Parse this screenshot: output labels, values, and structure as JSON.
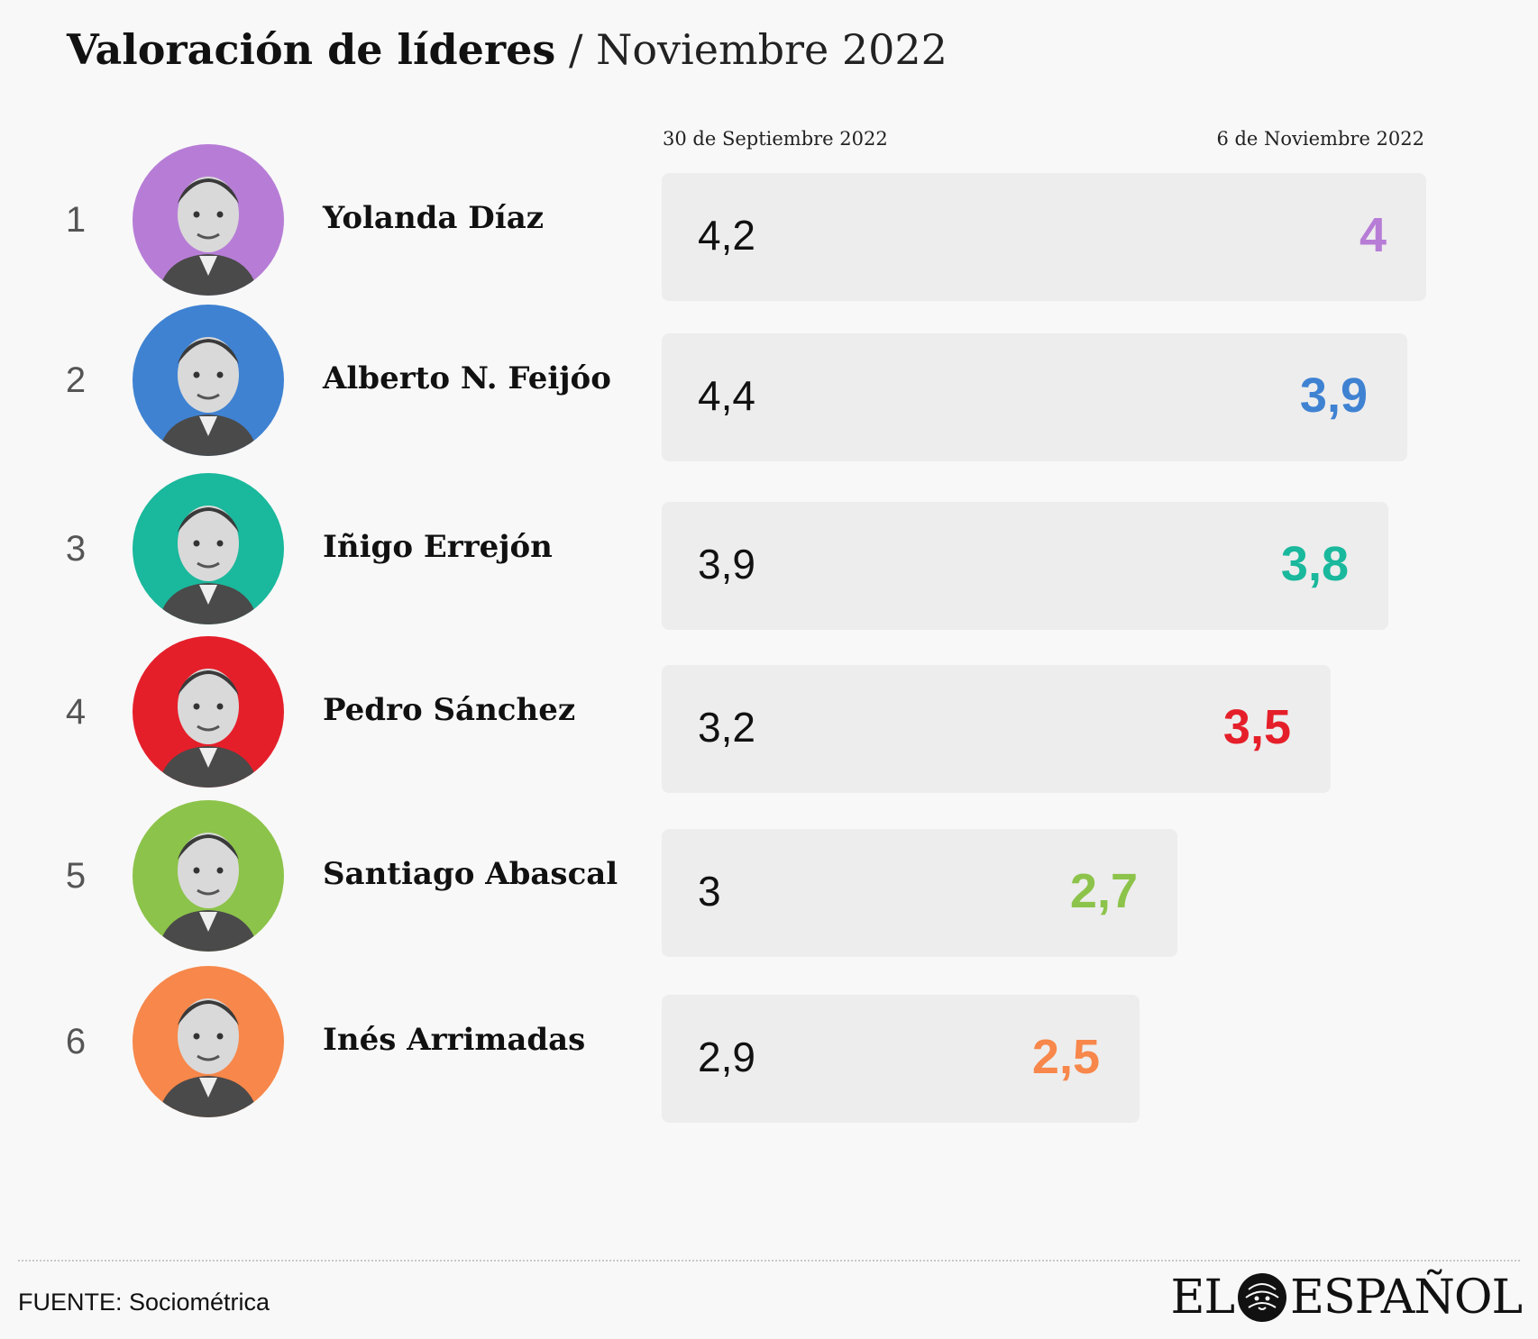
{
  "title": {
    "main": "Valoración de líderes",
    "separator": "/",
    "subtitle": "Noviembre 2022"
  },
  "columns": {
    "left": "30 de Septiembre 2022",
    "right": "6 de Noviembre 2022"
  },
  "leaders": [
    {
      "rank": "1",
      "name": "Yolanda Díaz",
      "old_label": "4,2",
      "new_label": "4",
      "color": "#b77dd6",
      "avatar": "yolanda-diaz-portrait"
    },
    {
      "rank": "2",
      "name": "Alberto N. Feijóo",
      "old_label": "4,4",
      "new_label": "3,9",
      "color": "#3f82d2",
      "avatar": "alberto-feijoo-portrait"
    },
    {
      "rank": "3",
      "name": "Iñigo Errejón",
      "old_label": "3,9",
      "new_label": "3,8",
      "color": "#1ab89c",
      "avatar": "inigo-errejon-portrait"
    },
    {
      "rank": "4",
      "name": "Pedro Sánchez",
      "old_label": "3,2",
      "new_label": "3,5",
      "color": "#e51f2a",
      "avatar": "pedro-sanchez-portrait"
    },
    {
      "rank": "5",
      "name": "Santiago Abascal",
      "old_label": "3",
      "new_label": "2,7",
      "color": "#8cc34a",
      "avatar": "santiago-abascal-portrait"
    },
    {
      "rank": "6",
      "name": "Inés Arrimadas",
      "old_label": "2,9",
      "new_label": "2,5",
      "color": "#f7874a",
      "avatar": "ines-arrimadas-portrait"
    }
  ],
  "chart_data": {
    "type": "bar",
    "categories": [
      "Yolanda Díaz",
      "Alberto N. Feijóo",
      "Iñigo Errejón",
      "Pedro Sánchez",
      "Santiago Abascal",
      "Inés Arrimadas"
    ],
    "series": [
      {
        "name": "30 de Septiembre 2022",
        "values": [
          4.2,
          4.4,
          3.9,
          3.2,
          3.0,
          2.9
        ]
      },
      {
        "name": "6 de Noviembre 2022",
        "values": [
          4.0,
          3.9,
          3.8,
          3.5,
          2.7,
          2.5
        ]
      }
    ],
    "title": "Valoración de líderes / Noviembre 2022",
    "orientation": "horizontal",
    "bar_length_encodes": "6 de Noviembre 2022"
  },
  "footer": {
    "source": "FUENTE: Sociométrica",
    "logo_left": "EL",
    "logo_right": "ESPAÑOL",
    "logo_icon": "lion-head-icon"
  }
}
